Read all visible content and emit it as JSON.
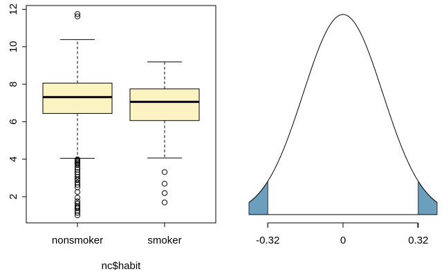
{
  "chart_data": [
    {
      "type": "boxplot",
      "xlabel": "nc$habit",
      "ylabel": "",
      "ylim": [
        0.6,
        12.2
      ],
      "yticks": [
        "2",
        "4",
        "6",
        "8",
        "10",
        "12"
      ],
      "box_fill": "#fbf4c2",
      "series": [
        {
          "category": "nonsmoker",
          "whisker_low": 4.05,
          "q1": 6.44,
          "median": 7.31,
          "q3": 8.06,
          "whisker_high": 10.38,
          "outliers": [
            11.75,
            11.62,
            3.99,
            3.94,
            3.88,
            3.82,
            3.75,
            3.69,
            3.55,
            3.44,
            3.31,
            3.19,
            3.06,
            2.94,
            2.88,
            2.75,
            2.63,
            2.5,
            2.25,
            1.94,
            1.75,
            1.63,
            1.5,
            1.44,
            1.38,
            1.25,
            1.13,
            1.0
          ]
        },
        {
          "category": "smoker",
          "whisker_low": 4.06,
          "q1": 6.06,
          "median": 7.06,
          "q3": 7.75,
          "whisker_high": 9.19,
          "outliers": [
            3.31,
            2.69,
            2.19,
            1.69
          ]
        }
      ]
    },
    {
      "type": "area",
      "distribution": "normal",
      "mean": 0,
      "sd": 0.169,
      "shaded_color": "#6c9fbe",
      "shaded_tails": [
        -0.32,
        0.32
      ],
      "xlim": [
        -0.4,
        0.4
      ],
      "xticks": [
        "-0.32",
        "0",
        "0.32"
      ]
    }
  ]
}
